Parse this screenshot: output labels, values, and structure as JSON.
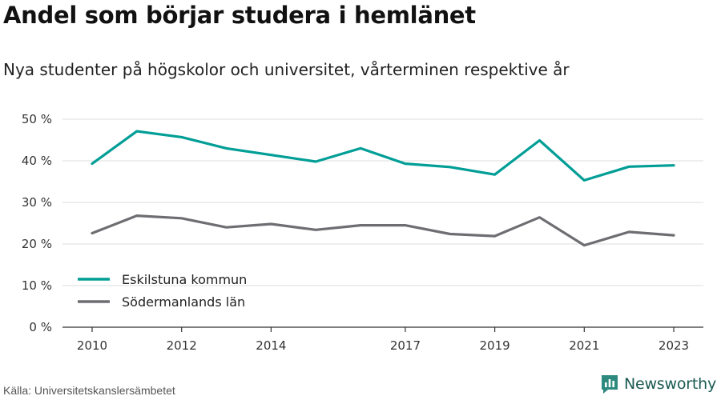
{
  "title": "Andel som börjar studera i hemlänet",
  "subtitle": "Nya studenter på högskolor och universitet, vårterminen respektive år",
  "source": "Källa: Universitetskanslersämbetet",
  "brand": {
    "name": "Newsworthy",
    "icon": "newsworthy-logo-icon",
    "color": "#1b5a52"
  },
  "chart_data": {
    "type": "line",
    "x": [
      2010,
      2011,
      2012,
      2013,
      2014,
      2015,
      2016,
      2017,
      2018,
      2019,
      2020,
      2021,
      2022,
      2023
    ],
    "xticks": [
      2010,
      2012,
      2014,
      2017,
      2019,
      2021,
      2023
    ],
    "ylim": [
      0,
      50
    ],
    "yticks": [
      0,
      10,
      20,
      30,
      40,
      50
    ],
    "ytick_labels": [
      "0 %",
      "10 %",
      "20 %",
      "30 %",
      "40 %",
      "50 %"
    ],
    "grid": true,
    "legend_position": "bottom-left",
    "series": [
      {
        "name": "Eskilstuna kommun",
        "color": "#009e96",
        "values": [
          39.3,
          47.1,
          45.7,
          43.0,
          41.4,
          39.8,
          43.0,
          39.3,
          38.5,
          36.7,
          44.9,
          35.3,
          38.6,
          38.9
        ]
      },
      {
        "name": "Södermanlands län",
        "color": "#6e6d72",
        "values": [
          22.6,
          26.8,
          26.2,
          24.0,
          24.8,
          23.4,
          24.5,
          24.5,
          22.4,
          21.9,
          26.4,
          19.7,
          22.9,
          22.1
        ]
      }
    ]
  }
}
